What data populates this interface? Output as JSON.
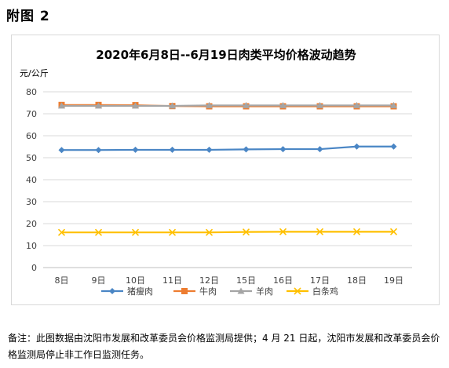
{
  "heading": "附图 2",
  "footnote": "备注：此图数据由沈阳市发展和改革委员会价格监测局提供；4 月 21 日起，沈阳市发展和改革委员会价格监测局停止非工作日监测任务。",
  "chart_data": {
    "type": "line",
    "title": "2020年6月8日--6月19日肉类平均价格波动趋势",
    "unit_label": "元/公斤",
    "xlabel": "",
    "ylabel": "",
    "categories": [
      "8日",
      "9日",
      "10日",
      "11日",
      "12日",
      "15日",
      "16日",
      "17日",
      "18日",
      "19日"
    ],
    "ylim": [
      0,
      80
    ],
    "yticks": [
      0,
      10,
      20,
      30,
      40,
      50,
      60,
      70,
      80
    ],
    "grid": true,
    "legend_position": "bottom",
    "series": [
      {
        "name": "猪瘦肉",
        "color": "#4a86c5",
        "marker": "diamond",
        "values": [
          53.5,
          53.5,
          53.6,
          53.6,
          53.6,
          53.8,
          53.9,
          53.9,
          55.1,
          55.1
        ]
      },
      {
        "name": "牛肉",
        "color": "#ed7d31",
        "marker": "square",
        "values": [
          74.0,
          74.0,
          73.9,
          73.5,
          73.4,
          73.4,
          73.4,
          73.4,
          73.4,
          73.4
        ]
      },
      {
        "name": "羊肉",
        "color": "#a5a5a5",
        "marker": "triangle",
        "values": [
          73.6,
          73.6,
          73.6,
          73.6,
          73.8,
          73.8,
          73.8,
          73.8,
          73.8,
          73.8
        ]
      },
      {
        "name": "白条鸡",
        "color": "#ffc000",
        "marker": "x",
        "values": [
          16.0,
          16.0,
          16.0,
          16.0,
          16.0,
          16.2,
          16.3,
          16.3,
          16.3,
          16.3
        ]
      }
    ]
  }
}
